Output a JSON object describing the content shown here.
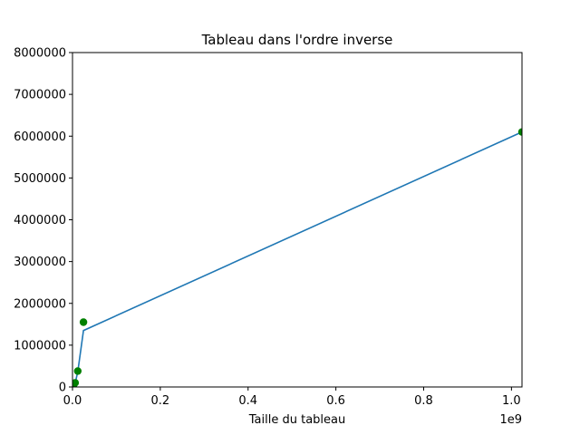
{
  "chart_data": {
    "type": "line",
    "title": "Tableau dans l'ordre inverse",
    "xlabel": "Taille du tableau",
    "ylabel": "",
    "x_offset_label": "1e9",
    "xlim": [
      0,
      1.024
    ],
    "ylim": [
      0,
      8000000
    ],
    "x_ticks": [
      0.0,
      0.2,
      0.4,
      0.6,
      0.8,
      1.0
    ],
    "x_tick_labels": [
      "0.0",
      "0.2",
      "0.4",
      "0.6",
      "0.8",
      "1.0"
    ],
    "y_ticks": [
      0,
      1000000,
      2000000,
      3000000,
      4000000,
      5000000,
      6000000,
      7000000,
      8000000
    ],
    "y_tick_labels": [
      "0",
      "1000000",
      "2000000",
      "3000000",
      "4000000",
      "5000000",
      "6000000",
      "7000000",
      "8000000"
    ],
    "grid": false,
    "series": [
      {
        "kind": "line",
        "color": "#1f77b4",
        "x": [
          0.002,
          0.006,
          0.012,
          0.025,
          1.024
        ],
        "y": [
          0,
          90000,
          360000,
          1350000,
          6100000
        ]
      },
      {
        "kind": "scatter",
        "color": "#008000",
        "x": [
          0.002,
          0.006,
          0.012,
          0.025,
          1.024
        ],
        "y": [
          0,
          100000,
          380000,
          1550000,
          6100000
        ]
      }
    ]
  }
}
